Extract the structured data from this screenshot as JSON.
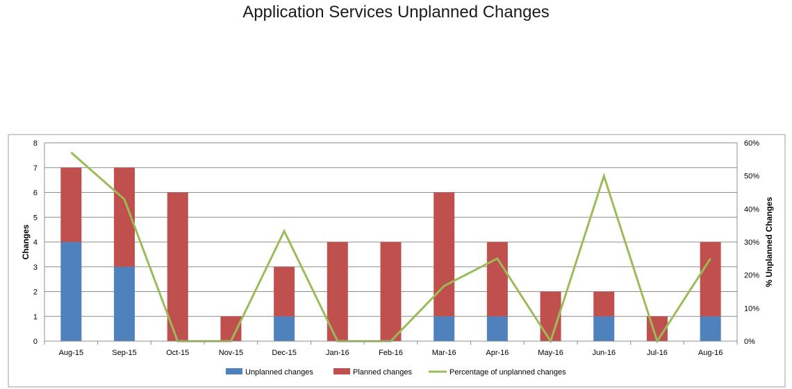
{
  "chart_data": {
    "type": "bar",
    "title": "Application Services Unplanned Changes",
    "categories": [
      "Aug-15",
      "Sep-15",
      "Oct-15",
      "Nov-15",
      "Dec-15",
      "Jan-16",
      "Feb-16",
      "Mar-16",
      "Apr-16",
      "May-16",
      "Jun-16",
      "Jul-16",
      "Aug-16"
    ],
    "series": [
      {
        "name": "Unplanned changes",
        "chart": "stacked-bar",
        "axis": "left",
        "color": "#4F81BD",
        "values": [
          4,
          3,
          0,
          0,
          1,
          0,
          0,
          1,
          1,
          0,
          1,
          0,
          1
        ]
      },
      {
        "name": "Planned changes",
        "chart": "stacked-bar",
        "axis": "left",
        "color": "#C0504D",
        "values": [
          3,
          4,
          6,
          1,
          2,
          4,
          4,
          5,
          3,
          2,
          1,
          1,
          3
        ]
      },
      {
        "name": "Percentage of unplanned changes",
        "chart": "line",
        "axis": "right",
        "color": "#9BBB59",
        "values": [
          0.571,
          0.429,
          0,
          0,
          0.333,
          0,
          0,
          0.167,
          0.25,
          0,
          0.5,
          0,
          0.25
        ]
      }
    ],
    "ylabel": "Changes",
    "y2label": "% Unplanned Changes",
    "ylim": [
      0,
      8
    ],
    "y2lim": [
      0,
      0.6
    ],
    "yticks": [
      "0",
      "1",
      "2",
      "3",
      "4",
      "5",
      "6",
      "7",
      "8"
    ],
    "y2ticks": [
      "0%",
      "10%",
      "20%",
      "30%",
      "40%",
      "50%",
      "60%"
    ],
    "grid": true,
    "legend_position": "bottom"
  }
}
